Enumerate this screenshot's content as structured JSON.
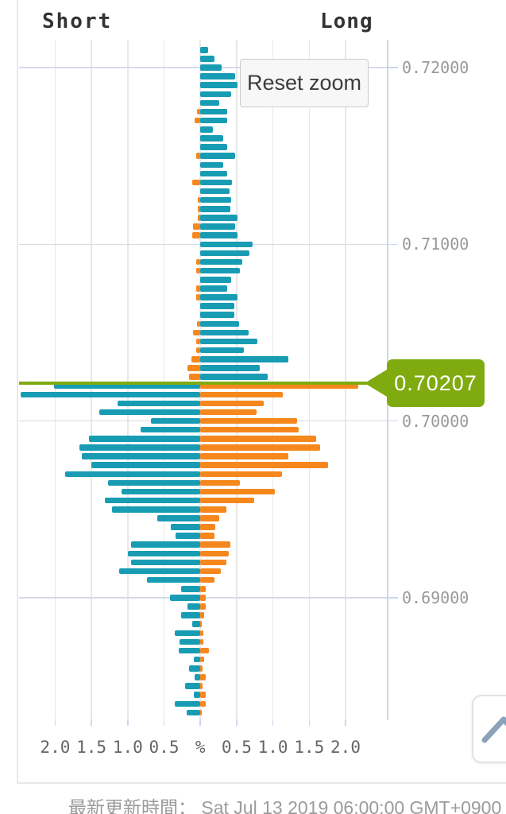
{
  "chart": {
    "short_label": "Short",
    "long_label": "Long",
    "reset_zoom_label": "Reset zoom",
    "price_callout": "0.70207"
  },
  "footer": {
    "last_update": "最新更新時間： Sat Jul 13 2019 06:00:00 GMT+0900"
  },
  "icons": {
    "scroll_top_icon": "chevron-up"
  },
  "colors": {
    "loss_teal": "#189cb4",
    "profit_orange": "#f6871d",
    "price_line_green": "#80ab10",
    "grid": "#e8e8e8",
    "price_grid": "#d6dbe6",
    "axis_line": "#ccd6eb",
    "x_label": "#666666",
    "y_label": "#999999",
    "corner_label": "#333333",
    "footer_text": "#9b9b9b"
  },
  "chart_data": {
    "type": "bar",
    "orientation": "horizontal",
    "mirror": true,
    "title": "",
    "xlabel": "%",
    "ylabel": "",
    "x_ticks": [
      "2.0",
      "1.5",
      "1.0",
      "0.5",
      "%",
      "0.5",
      "1.0",
      "1.5",
      "2.0"
    ],
    "x_tick_values": [
      -2.0,
      -1.5,
      -1.0,
      -0.5,
      0,
      0.5,
      1.0,
      1.5,
      2.0
    ],
    "xlim": [
      -2.5,
      2.57
    ],
    "y_ticks": [
      "0.72000",
      "0.71000",
      "0.70000",
      "0.69000"
    ],
    "y_tick_values": [
      0.72,
      0.71,
      0.7,
      0.69
    ],
    "ylim": [
      0.6832,
      0.7216
    ],
    "grid": true,
    "current_price": 0.70207,
    "price_step": 0.0005,
    "legend": {
      "left": "Short",
      "right": "Long"
    },
    "series": [
      {
        "name": "Short",
        "side": "left",
        "color_above_price": "#f6871d",
        "color_below_price": "#189cb4"
      },
      {
        "name": "Long",
        "side": "right",
        "color_above_price": "#189cb4",
        "color_below_price": "#f6871d"
      }
    ],
    "rows_format": [
      "price",
      "short_pct",
      "long_pct"
    ],
    "rows": [
      [
        0.721,
        0.0,
        0.11
      ],
      [
        0.7205,
        0.0,
        0.19
      ],
      [
        0.72,
        0.0,
        0.29
      ],
      [
        0.7195,
        0.0,
        0.48
      ],
      [
        0.719,
        0.0,
        0.51
      ],
      [
        0.7185,
        0.0,
        0.43
      ],
      [
        0.718,
        0.0,
        0.26
      ],
      [
        0.7175,
        0.05,
        0.37
      ],
      [
        0.717,
        0.08,
        0.37
      ],
      [
        0.7165,
        0.0,
        0.17
      ],
      [
        0.716,
        0.0,
        0.31
      ],
      [
        0.7155,
        0.0,
        0.37
      ],
      [
        0.715,
        0.06,
        0.48
      ],
      [
        0.7145,
        0.0,
        0.32
      ],
      [
        0.714,
        0.0,
        0.37
      ],
      [
        0.7135,
        0.11,
        0.44
      ],
      [
        0.713,
        0.0,
        0.4
      ],
      [
        0.7125,
        0.03,
        0.43
      ],
      [
        0.712,
        0.03,
        0.41
      ],
      [
        0.7115,
        0.03,
        0.51
      ],
      [
        0.711,
        0.1,
        0.48
      ],
      [
        0.7105,
        0.11,
        0.51
      ],
      [
        0.71,
        0.0,
        0.72
      ],
      [
        0.7095,
        0.0,
        0.68
      ],
      [
        0.709,
        0.06,
        0.58
      ],
      [
        0.7085,
        0.06,
        0.55
      ],
      [
        0.708,
        0.0,
        0.42
      ],
      [
        0.7075,
        0.06,
        0.37
      ],
      [
        0.707,
        0.06,
        0.51
      ],
      [
        0.7065,
        0.0,
        0.47
      ],
      [
        0.706,
        0.0,
        0.47
      ],
      [
        0.7055,
        0.05,
        0.53
      ],
      [
        0.705,
        0.1,
        0.66
      ],
      [
        0.7045,
        0.06,
        0.79
      ],
      [
        0.704,
        0.06,
        0.6
      ],
      [
        0.7035,
        0.12,
        1.21
      ],
      [
        0.703,
        0.18,
        0.82
      ],
      [
        0.7025,
        0.15,
        0.93
      ],
      [
        0.702,
        2.01,
        2.17
      ],
      [
        0.7015,
        2.48,
        1.14
      ],
      [
        0.701,
        1.14,
        0.87
      ],
      [
        0.7005,
        1.39,
        0.77
      ],
      [
        0.7,
        0.68,
        1.33
      ],
      [
        0.6995,
        0.82,
        1.35
      ],
      [
        0.699,
        1.53,
        1.6
      ],
      [
        0.6985,
        1.66,
        1.65
      ],
      [
        0.698,
        1.63,
        1.21
      ],
      [
        0.6975,
        1.5,
        1.76
      ],
      [
        0.697,
        1.86,
        1.13
      ],
      [
        0.6965,
        1.27,
        0.55
      ],
      [
        0.696,
        1.08,
        1.03
      ],
      [
        0.6955,
        1.32,
        0.74
      ],
      [
        0.695,
        1.22,
        0.36
      ],
      [
        0.6945,
        0.59,
        0.26
      ],
      [
        0.694,
        0.41,
        0.21
      ],
      [
        0.6935,
        0.34,
        0.19
      ],
      [
        0.693,
        0.95,
        0.41
      ],
      [
        0.6925,
        1.0,
        0.39
      ],
      [
        0.692,
        0.95,
        0.36
      ],
      [
        0.6915,
        1.12,
        0.28
      ],
      [
        0.691,
        0.74,
        0.19
      ],
      [
        0.6905,
        0.26,
        0.08
      ],
      [
        0.69,
        0.42,
        0.07
      ],
      [
        0.6895,
        0.18,
        0.08
      ],
      [
        0.689,
        0.26,
        0.05
      ],
      [
        0.6885,
        0.11,
        0.02
      ],
      [
        0.688,
        0.35,
        0.04
      ],
      [
        0.6875,
        0.29,
        0.04
      ],
      [
        0.687,
        0.3,
        0.12
      ],
      [
        0.6865,
        0.09,
        0.05
      ],
      [
        0.686,
        0.16,
        0.03
      ],
      [
        0.6855,
        0.08,
        0.07
      ],
      [
        0.685,
        0.21,
        0.03
      ],
      [
        0.6845,
        0.09,
        0.08
      ],
      [
        0.684,
        0.35,
        0.08
      ],
      [
        0.6835,
        0.19,
        0.02
      ]
    ]
  }
}
